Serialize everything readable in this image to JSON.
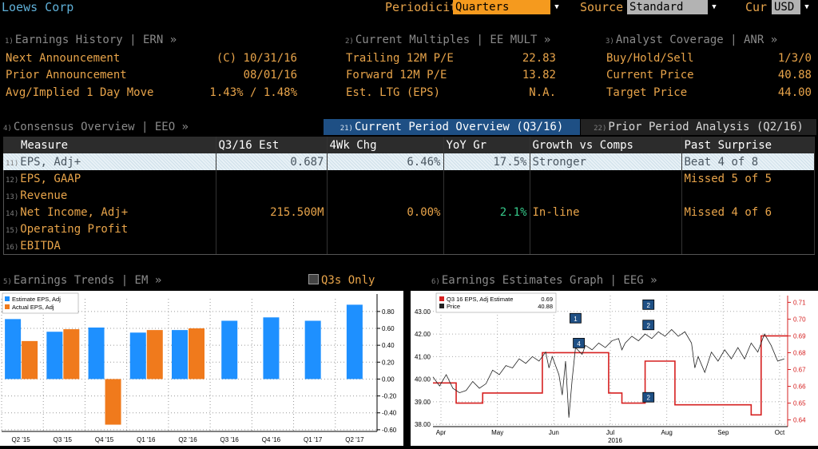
{
  "window": {
    "title": "Loews Corp"
  },
  "controls": {
    "periodicity_label": "Periodicity",
    "periodicity_value": "Quarters",
    "source_label": "Source",
    "source_value": "Standard",
    "cur_label": "Cur",
    "cur_value": "USD"
  },
  "sections": {
    "ern": {
      "num": "1)",
      "title": "Earnings History | ERN »",
      "rows": [
        {
          "label": "Next Announcement",
          "value": "(C)  10/31/16"
        },
        {
          "label": "Prior Announcement",
          "value": "08/01/16"
        },
        {
          "label": "Avg/Implied 1 Day Move",
          "value": "1.43% / 1.48%"
        }
      ]
    },
    "mult": {
      "num": "2)",
      "title": "Current Multiples | EE MULT »",
      "rows": [
        {
          "label": "Trailing 12M P/E",
          "value": "22.83"
        },
        {
          "label": "Forward 12M P/E",
          "value": "13.82"
        },
        {
          "label": "Est. LTG (EPS)",
          "value": "N.A."
        }
      ]
    },
    "anr": {
      "num": "3)",
      "title": "Analyst Coverage | ANR »",
      "rows": [
        {
          "label": "Buy/Hold/Sell",
          "value": "1/3/0"
        },
        {
          "label": "Current Price",
          "value": "40.88"
        },
        {
          "label": "Target Price",
          "value": "44.00"
        }
      ]
    }
  },
  "consensus": {
    "num": "4)",
    "title": "Consensus Overview | EEO »",
    "tab1_num": "21)",
    "tab1": "Current Period Overview (Q3/16)",
    "tab2_num": "22)",
    "tab2": "Prior Period Analysis (Q2/16)",
    "headers": [
      "Measure",
      "Q3/16 Est",
      "4Wk Chg",
      "YoY Gr",
      "Growth vs Comps",
      "Past Surprise"
    ],
    "rows": [
      {
        "num": "11)",
        "measure": "EPS, Adj+",
        "est": "0.687",
        "chg": "6.46%",
        "yoy": "17.5%",
        "comps": "Stronger",
        "surprise": "Beat 4 of 8"
      },
      {
        "num": "12)",
        "measure": "EPS, GAAP",
        "est": "",
        "chg": "",
        "yoy": "",
        "comps": "",
        "surprise": "Missed 5 of 5"
      },
      {
        "num": "13)",
        "measure": "Revenue",
        "est": "",
        "chg": "",
        "yoy": "",
        "comps": "",
        "surprise": ""
      },
      {
        "num": "14)",
        "measure": "Net Income, Adj+",
        "est": "215.500M",
        "chg": "0.00%",
        "yoy": "2.1%",
        "comps": "In-line",
        "surprise": "Missed 4 of 6"
      },
      {
        "num": "15)",
        "measure": "Operating Profit",
        "est": "",
        "chg": "",
        "yoy": "",
        "comps": "",
        "surprise": ""
      },
      {
        "num": "16)",
        "measure": "EBITDA",
        "est": "",
        "chg": "",
        "yoy": "",
        "comps": "",
        "surprise": ""
      }
    ]
  },
  "trends": {
    "num": "5)",
    "title": "Earnings Trends | EM »",
    "toggle": "Q3s Only"
  },
  "graph": {
    "num": "6)",
    "title": "Earnings Estimates Graph | EEG »"
  },
  "colors": {
    "estimate": "#1e90ff",
    "actual": "#f07a1c",
    "estimate_line": "#d62020",
    "price_line": "#222222"
  },
  "chart_data": [
    {
      "type": "bar",
      "categories": [
        "Q2 '15",
        "Q3 '15",
        "Q4 '15",
        "Q1 '16",
        "Q2 '16",
        "Q3 '16",
        "Q4 '16",
        "Q1 '17",
        "Q2 '17"
      ],
      "series": [
        {
          "name": "Estimate EPS, Adj",
          "values": [
            0.71,
            0.56,
            0.61,
            0.55,
            0.58,
            0.69,
            0.73,
            0.69,
            0.88
          ]
        },
        {
          "name": "Actual EPS, Adj",
          "values": [
            0.45,
            0.59,
            -0.54,
            0.58,
            0.6,
            null,
            null,
            null,
            null
          ]
        }
      ],
      "yticks": [
        "0.80",
        "0.60",
        "0.40",
        "0.20",
        "0.00",
        "-0.20",
        "-0.40",
        "-0.60"
      ],
      "ylim": [
        -0.62,
        0.95
      ],
      "legend": "top-left"
    },
    {
      "type": "line",
      "legend_rows": [
        {
          "name": "Q3 16 EPS, Adj Estimate",
          "value": "0.69"
        },
        {
          "name": "Price",
          "value": "40.88"
        }
      ],
      "x_labels": [
        "Apr",
        "May",
        "Jun",
        "Jul",
        "Aug",
        "Sep",
        "Oct"
      ],
      "x_year": "2016",
      "left_ticks": [
        "43.00",
        "42.00",
        "41.00",
        "40.00",
        "39.00",
        "38.00"
      ],
      "right_ticks": [
        "0.71",
        "0.70",
        "0.69",
        "0.68",
        "0.67",
        "0.66",
        "0.65",
        "0.64"
      ],
      "price_range": [
        37.9,
        43.7
      ],
      "estimate_range": [
        0.636,
        0.714
      ],
      "estimate": [
        [
          0,
          0.662
        ],
        [
          0.07,
          0.662
        ],
        [
          0.07,
          0.65
        ],
        [
          0.15,
          0.65
        ],
        [
          0.15,
          0.656
        ],
        [
          0.33,
          0.656
        ],
        [
          0.33,
          0.68
        ],
        [
          0.53,
          0.68
        ],
        [
          0.53,
          0.656
        ],
        [
          0.57,
          0.656
        ],
        [
          0.57,
          0.65
        ],
        [
          0.64,
          0.65
        ],
        [
          0.64,
          0.675
        ],
        [
          0.73,
          0.675
        ],
        [
          0.73,
          0.649
        ],
        [
          0.96,
          0.649
        ],
        [
          0.96,
          0.643
        ],
        [
          0.99,
          0.643
        ],
        [
          0.99,
          0.69
        ],
        [
          1.07,
          0.69
        ]
      ],
      "price": [
        [
          0,
          40.1
        ],
        [
          0.02,
          39.7
        ],
        [
          0.04,
          40.2
        ],
        [
          0.06,
          39.6
        ],
        [
          0.08,
          39.4
        ],
        [
          0.1,
          39.5
        ],
        [
          0.12,
          39.9
        ],
        [
          0.14,
          39.6
        ],
        [
          0.16,
          39.8
        ],
        [
          0.18,
          40.4
        ],
        [
          0.2,
          40.2
        ],
        [
          0.22,
          40.6
        ],
        [
          0.24,
          40.5
        ],
        [
          0.26,
          40.9
        ],
        [
          0.28,
          40.7
        ],
        [
          0.3,
          41.0
        ],
        [
          0.32,
          40.8
        ],
        [
          0.34,
          41.2
        ],
        [
          0.35,
          40.5
        ],
        [
          0.36,
          41.0
        ],
        [
          0.38,
          40.2
        ],
        [
          0.39,
          39.3
        ],
        [
          0.4,
          40.8
        ],
        [
          0.41,
          38.3
        ],
        [
          0.42,
          40.0
        ],
        [
          0.43,
          41.4
        ],
        [
          0.45,
          41.1
        ],
        [
          0.46,
          41.5
        ],
        [
          0.48,
          41.3
        ],
        [
          0.5,
          41.6
        ],
        [
          0.52,
          41.4
        ],
        [
          0.54,
          41.7
        ],
        [
          0.56,
          41.8
        ],
        [
          0.57,
          41.3
        ],
        [
          0.58,
          41.6
        ],
        [
          0.6,
          41.9
        ],
        [
          0.62,
          41.7
        ],
        [
          0.64,
          42.0
        ],
        [
          0.66,
          41.8
        ],
        [
          0.68,
          42.1
        ],
        [
          0.7,
          41.9
        ],
        [
          0.72,
          42.2
        ],
        [
          0.74,
          41.9
        ],
        [
          0.76,
          42.1
        ],
        [
          0.78,
          41.6
        ],
        [
          0.79,
          40.5
        ],
        [
          0.8,
          41.0
        ],
        [
          0.82,
          40.3
        ],
        [
          0.84,
          41.2
        ],
        [
          0.86,
          40.8
        ],
        [
          0.88,
          41.3
        ],
        [
          0.9,
          40.9
        ],
        [
          0.92,
          41.4
        ],
        [
          0.94,
          40.9
        ],
        [
          0.96,
          41.6
        ],
        [
          0.98,
          41.2
        ],
        [
          1.0,
          42.0
        ],
        [
          1.02,
          41.5
        ],
        [
          1.04,
          40.8
        ],
        [
          1.06,
          40.9
        ]
      ],
      "markers": [
        {
          "label": "1",
          "x": 0.43,
          "y": 42.7
        },
        {
          "label": "4",
          "x": 0.44,
          "y": 41.6
        },
        {
          "label": "2",
          "x": 0.65,
          "y": 43.3
        },
        {
          "label": "2",
          "x": 0.65,
          "y": 42.4
        },
        {
          "label": "2",
          "x": 0.65,
          "y": 39.2
        }
      ]
    }
  ]
}
